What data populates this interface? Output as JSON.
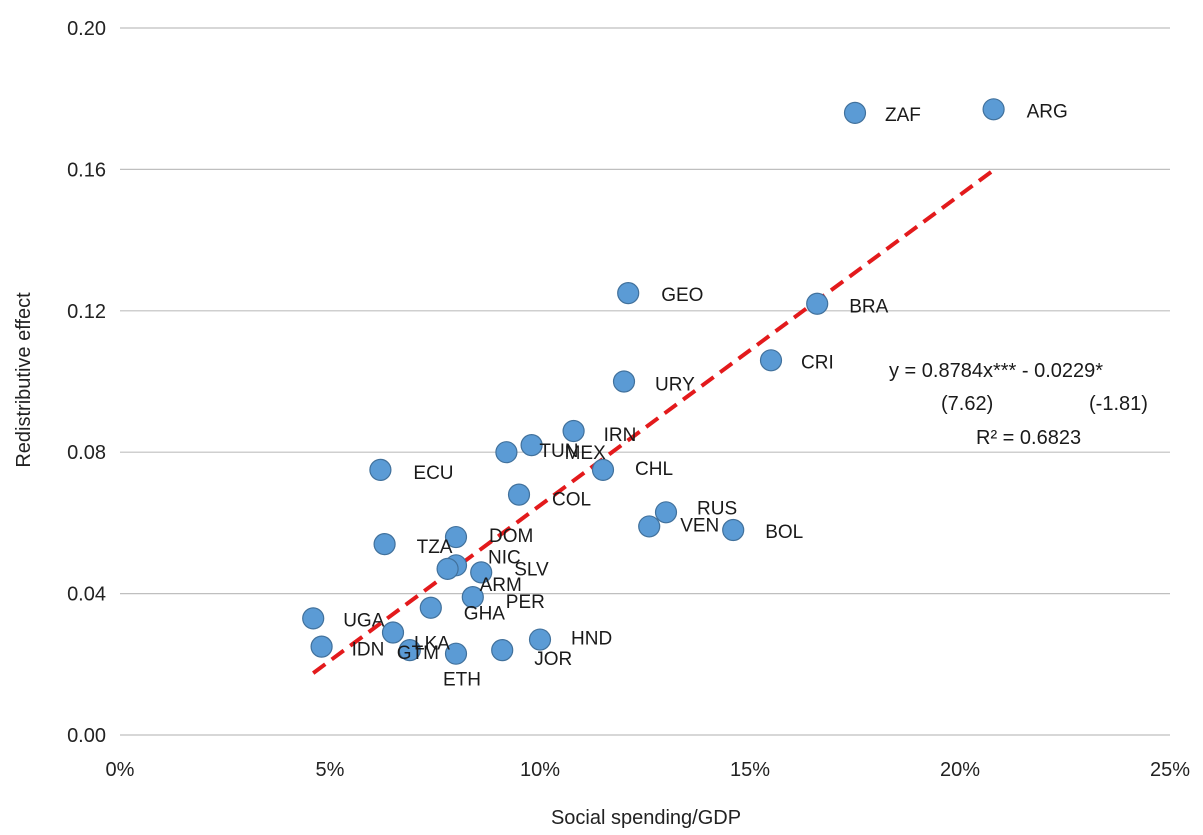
{
  "chart_data": {
    "type": "scatter",
    "xlabel": "Social spending/GDP",
    "ylabel": "Redistributive effect",
    "xlim": [
      0,
      0.25
    ],
    "ylim": [
      0,
      0.2
    ],
    "x_ticks": [
      0,
      0.05,
      0.1,
      0.15,
      0.2,
      0.25
    ],
    "x_tick_labels": [
      "0%",
      "5%",
      "10%",
      "15%",
      "20%",
      "25%"
    ],
    "y_ticks": [
      0,
      0.04,
      0.08,
      0.12,
      0.16,
      0.2
    ],
    "y_tick_labels": [
      "0.00",
      "0.04",
      "0.08",
      "0.12",
      "0.16",
      "0.20"
    ],
    "grid": "horizontal",
    "marker_color": "#5b9bd5",
    "marker_edge": "#41719c",
    "trend_color": "#e31a1c",
    "trendline": {
      "slope": 0.8784,
      "intercept": -0.0229,
      "x_range": [
        0.046,
        0.208
      ]
    },
    "equation": [
      "y = 0.8784x*** - 0.0229*",
      "(7.62)",
      "(-1.81)",
      "R² = 0.6823"
    ],
    "points": [
      {
        "label": "ZAF",
        "x": 0.175,
        "y": 0.176
      },
      {
        "label": "ARG",
        "x": 0.208,
        "y": 0.177
      },
      {
        "label": "GEO",
        "x": 0.121,
        "y": 0.125
      },
      {
        "label": "BRA",
        "x": 0.166,
        "y": 0.122
      },
      {
        "label": "CRI",
        "x": 0.155,
        "y": 0.106
      },
      {
        "label": "URY",
        "x": 0.12,
        "y": 0.1
      },
      {
        "label": "IRN",
        "x": 0.108,
        "y": 0.086
      },
      {
        "label": "MEX",
        "x": 0.098,
        "y": 0.082
      },
      {
        "label": "TUN",
        "x": 0.092,
        "y": 0.08
      },
      {
        "label": "CHL",
        "x": 0.115,
        "y": 0.075
      },
      {
        "label": "ECU",
        "x": 0.062,
        "y": 0.075
      },
      {
        "label": "COL",
        "x": 0.095,
        "y": 0.068
      },
      {
        "label": "RUS",
        "x": 0.13,
        "y": 0.063
      },
      {
        "label": "VEN",
        "x": 0.126,
        "y": 0.059
      },
      {
        "label": "BOL",
        "x": 0.146,
        "y": 0.058
      },
      {
        "label": "DOM",
        "x": 0.08,
        "y": 0.056
      },
      {
        "label": "TZA",
        "x": 0.063,
        "y": 0.054
      },
      {
        "label": "NIC",
        "x": 0.08,
        "y": 0.048
      },
      {
        "label": "ARM",
        "x": 0.078,
        "y": 0.047
      },
      {
        "label": "SLV",
        "x": 0.086,
        "y": 0.046
      },
      {
        "label": "PER",
        "x": 0.084,
        "y": 0.039
      },
      {
        "label": "GHA",
        "x": 0.074,
        "y": 0.036
      },
      {
        "label": "UGA",
        "x": 0.046,
        "y": 0.033
      },
      {
        "label": "LKA",
        "x": 0.065,
        "y": 0.029
      },
      {
        "label": "HND",
        "x": 0.1,
        "y": 0.027
      },
      {
        "label": "IDN",
        "x": 0.048,
        "y": 0.025
      },
      {
        "label": "GTM",
        "x": 0.069,
        "y": 0.024
      },
      {
        "label": "JOR",
        "x": 0.091,
        "y": 0.024
      },
      {
        "label": "ETH",
        "x": 0.08,
        "y": 0.023
      }
    ]
  }
}
